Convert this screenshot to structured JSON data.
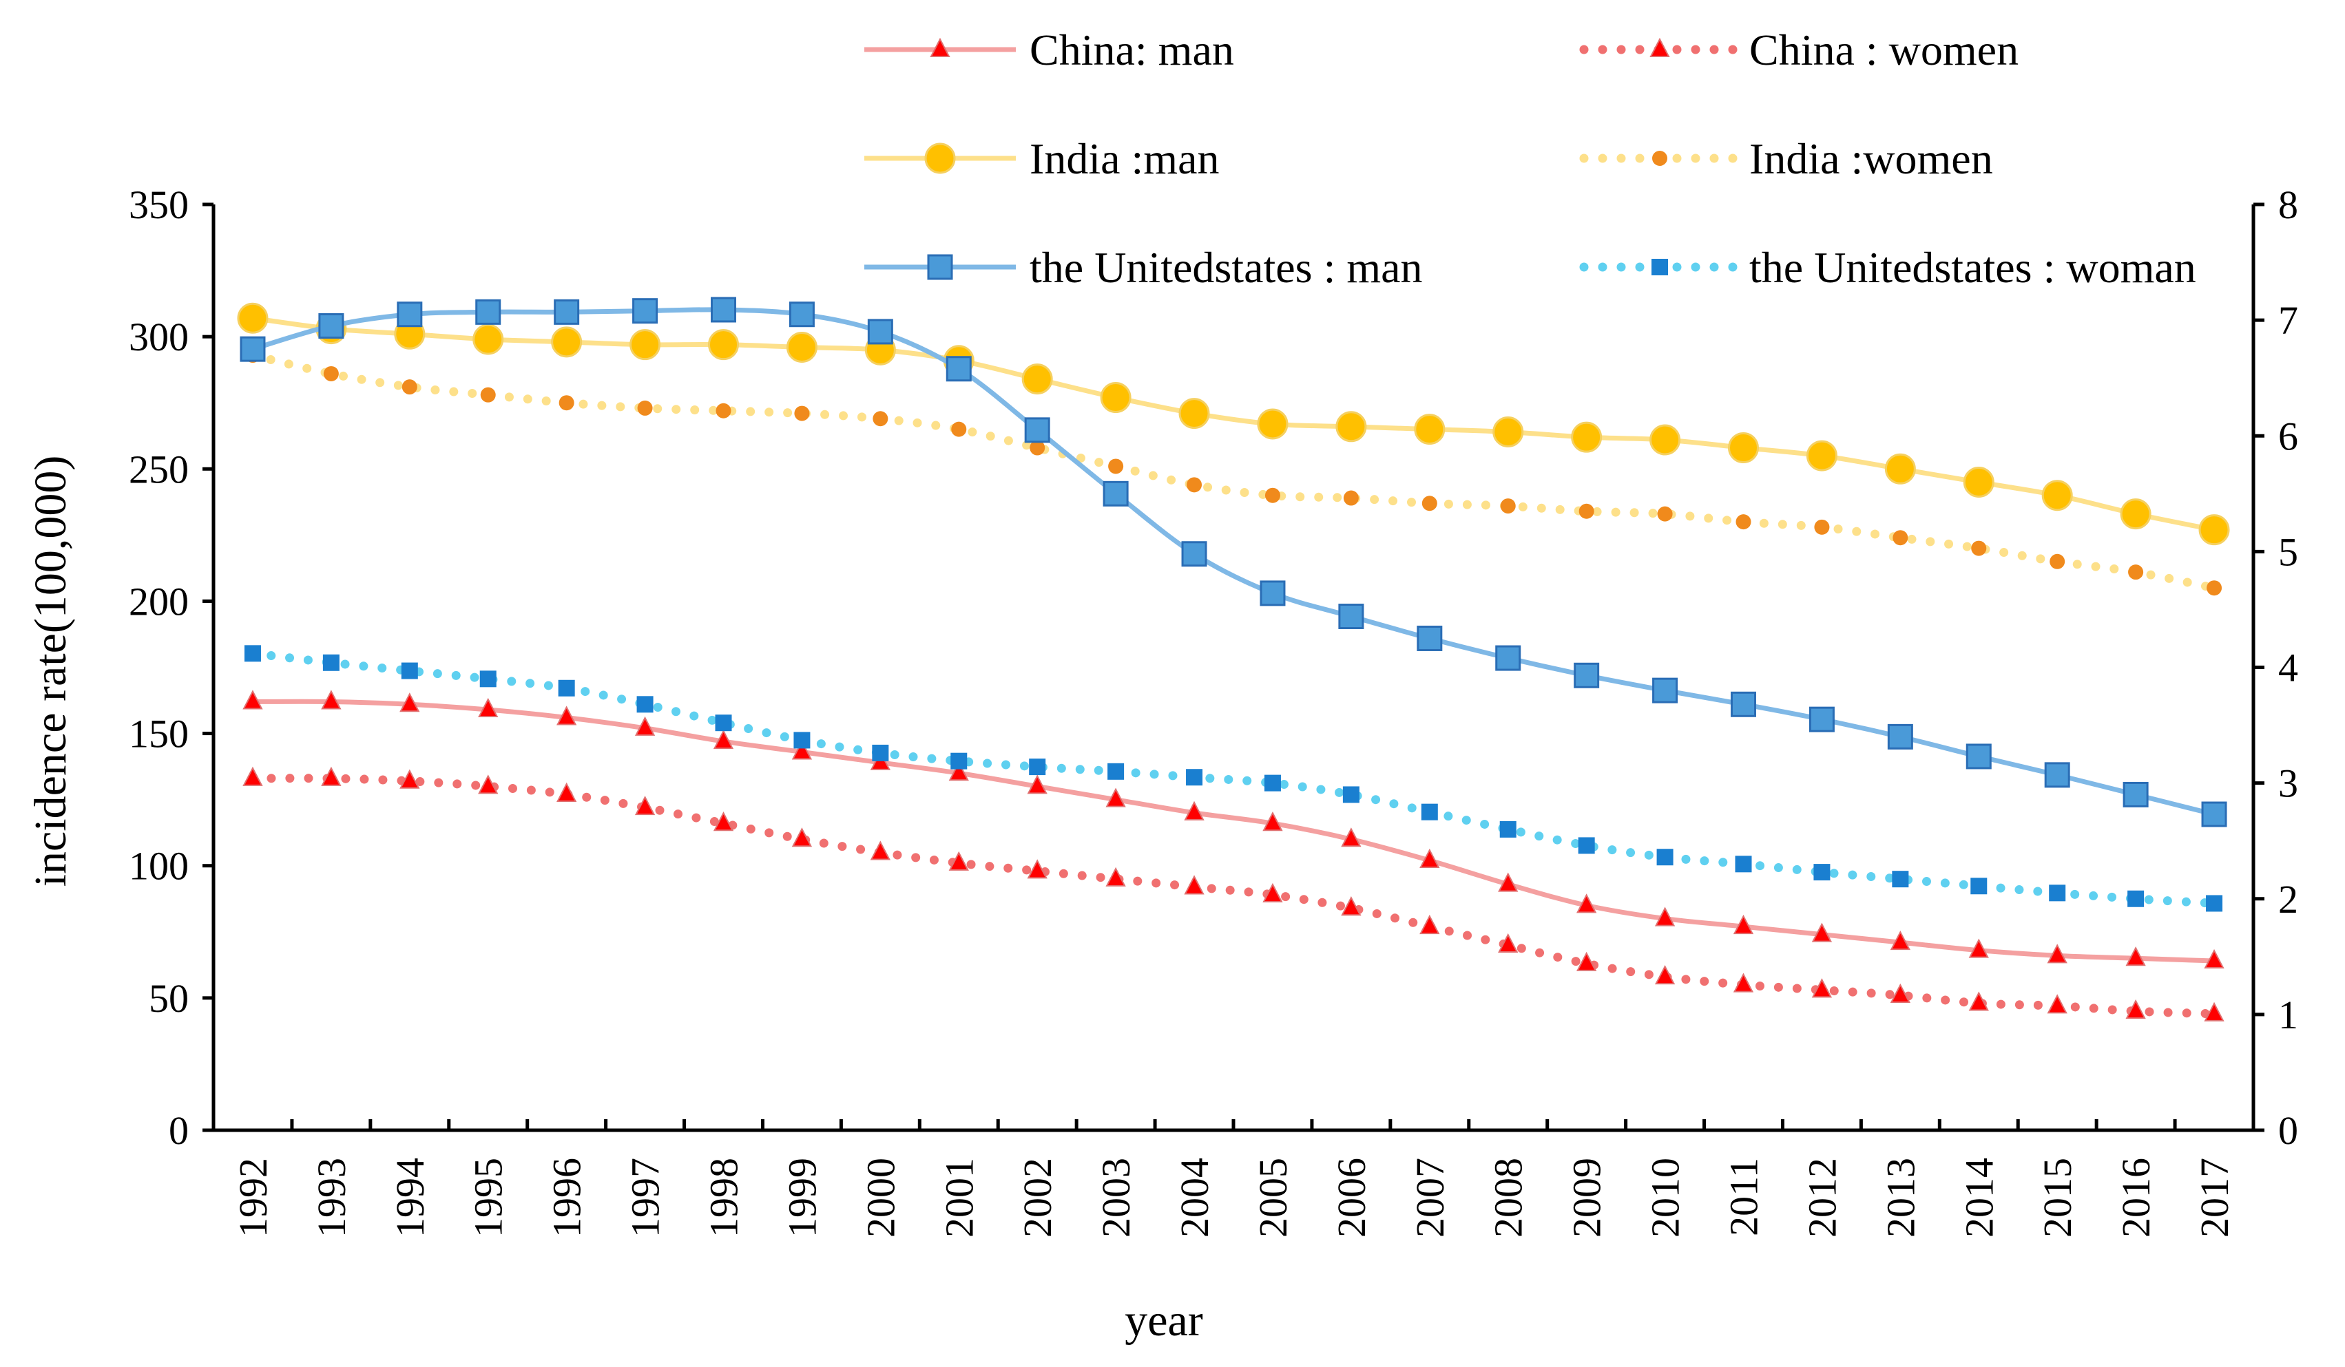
{
  "chart_data": {
    "type": "line",
    "categories": [
      "1992",
      "1993",
      "1994",
      "1995",
      "1996",
      "1997",
      "1998",
      "1999",
      "2000",
      "2001",
      "2002",
      "2003",
      "2004",
      "2005",
      "2006",
      "2007",
      "2008",
      "2009",
      "2010",
      "2011",
      "2012",
      "2013",
      "2014",
      "2015",
      "2016",
      "2017"
    ],
    "xlabel": "year",
    "ylabel": "incidence rate(100,000)",
    "ylim_left": [
      0,
      350
    ],
    "ylim_right": [
      0,
      8
    ],
    "yticks_left": [
      0,
      50,
      100,
      150,
      200,
      250,
      300,
      350
    ],
    "yticks_right": [
      0,
      1,
      2,
      3,
      4,
      5,
      6,
      7,
      8
    ],
    "grid": false,
    "legend_position": "top",
    "series": [
      {
        "name": "China: man",
        "axis": "left",
        "style": "solid",
        "marker": "triangle",
        "line_color": "#f4a0a0",
        "marker_color": "#ff0000",
        "values": [
          162,
          162,
          161,
          159,
          156,
          152,
          147,
          143,
          139,
          135,
          130,
          125,
          120,
          116,
          110,
          102,
          93,
          85,
          80,
          77,
          74,
          71,
          68,
          66,
          65,
          64
        ]
      },
      {
        "name": "China : women",
        "axis": "left",
        "style": "dotted",
        "marker": "triangle",
        "line_color": "#f07070",
        "marker_color": "#ff0000",
        "values": [
          133,
          133,
          132,
          130,
          127,
          122,
          116,
          110,
          105,
          101,
          98,
          95,
          92,
          89,
          84,
          77,
          70,
          63,
          58,
          55,
          53,
          51,
          48,
          47,
          45,
          44
        ]
      },
      {
        "name": "India :man",
        "axis": "left",
        "style": "solid",
        "marker": "circle",
        "line_color": "#fde08a",
        "marker_color": "#ffc000",
        "values": [
          307,
          303,
          301,
          299,
          298,
          297,
          297,
          296,
          295,
          291,
          284,
          277,
          271,
          267,
          266,
          265,
          264,
          262,
          261,
          258,
          255,
          250,
          245,
          240,
          233,
          227
        ]
      },
      {
        "name": "India :women",
        "axis": "left",
        "style": "dotted",
        "marker": "circle-small",
        "line_color": "#fde08a",
        "marker_color": "#f08a1c",
        "values": [
          293,
          286,
          281,
          278,
          275,
          273,
          272,
          271,
          269,
          265,
          258,
          251,
          244,
          240,
          239,
          237,
          236,
          234,
          233,
          230,
          228,
          224,
          220,
          215,
          211,
          205
        ]
      },
      {
        "name": "the Unitedstates : man",
        "axis": "right",
        "style": "solid",
        "marker": "square",
        "line_color": "#7fb8e6",
        "marker_color": "#4a9ad8",
        "values": [
          6.75,
          6.95,
          7.05,
          7.07,
          7.07,
          7.08,
          7.09,
          7.05,
          6.9,
          6.58,
          6.05,
          5.5,
          4.98,
          4.64,
          4.44,
          4.25,
          4.08,
          3.93,
          3.8,
          3.68,
          3.55,
          3.4,
          3.23,
          3.07,
          2.9,
          2.73
        ]
      },
      {
        "name": "the Unitedstates : woman",
        "axis": "right",
        "style": "dotted",
        "marker": "square-small",
        "line_color": "#5fd0f0",
        "marker_color": "#1a7fd0",
        "values": [
          4.12,
          4.04,
          3.97,
          3.9,
          3.82,
          3.68,
          3.52,
          3.37,
          3.26,
          3.19,
          3.14,
          3.1,
          3.05,
          3.0,
          2.9,
          2.75,
          2.6,
          2.46,
          2.36,
          2.3,
          2.23,
          2.17,
          2.11,
          2.05,
          2.0,
          1.96
        ]
      }
    ]
  }
}
